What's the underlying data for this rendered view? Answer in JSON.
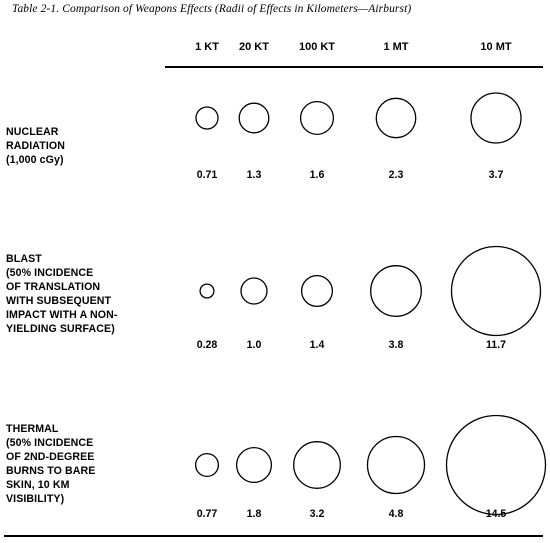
{
  "caption": "Table 2-1.  Comparison of Weapons Effects (Radii of Effects in Kilometers—Airburst)",
  "columns": [
    "1 KT",
    "20 KT",
    "100 KT",
    "1 MT",
    "10 MT"
  ],
  "rows": [
    {
      "label": "NUCLEAR\nRADIATION\n(1,000 cGy)",
      "values": [
        "0.71",
        "1.3",
        "1.6",
        "2.3",
        "3.7"
      ],
      "radii_km": [
        0.71,
        1.3,
        1.6,
        2.3,
        3.7
      ]
    },
    {
      "label": "BLAST\n(50% INCIDENCE\nOF TRANSLATION\nWITH SUBSEQUENT\nIMPACT WITH A NON-\nYIELDING SURFACE)",
      "values": [
        "0.28",
        "1.0",
        "1.4",
        "3.8",
        "11.7"
      ],
      "radii_km": [
        0.28,
        1.0,
        1.4,
        3.8,
        11.7
      ]
    },
    {
      "label": "THERMAL\n(50% INCIDENCE\nOF 2ND-DEGREE\nBURNS TO BARE\nSKIN, 10 KM\nVISIBILITY)",
      "values": [
        "0.77",
        "1.8",
        "3.2",
        "4.8",
        "14.5"
      ],
      "radii_km": [
        0.77,
        1.8,
        3.2,
        4.8,
        14.5
      ]
    }
  ]
}
